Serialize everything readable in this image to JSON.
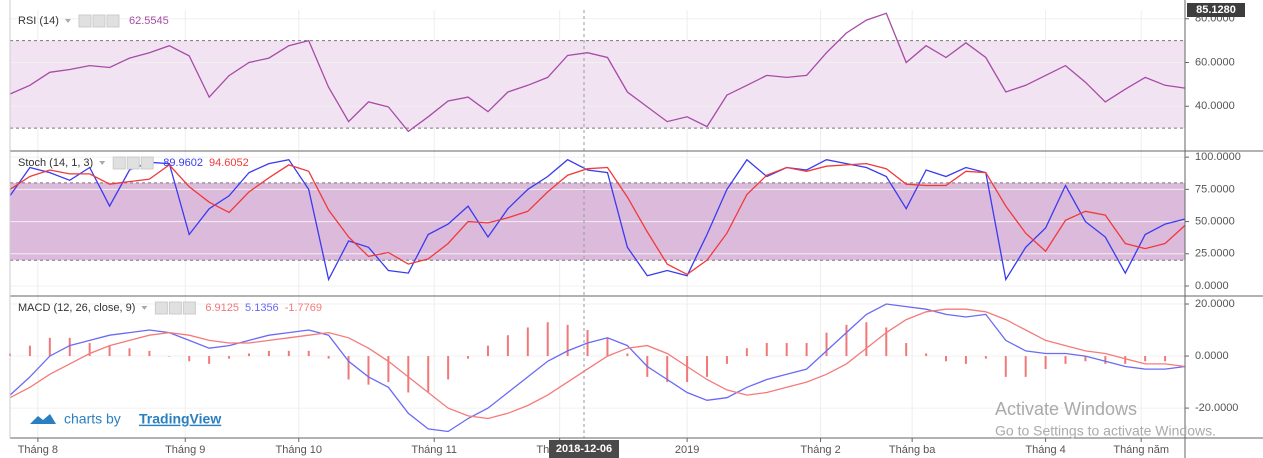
{
  "chart_data": [
    {
      "type": "line",
      "title": "RSI (14)",
      "ylim": [
        20,
        84
      ],
      "yticks": [
        {
          "value": 40,
          "label": "40.0000"
        },
        {
          "value": 60,
          "label": "60.0000"
        },
        {
          "value": 80,
          "label": "80.0000"
        }
      ],
      "bands": [
        30,
        70
      ],
      "band_color": "#f1e3f2",
      "price_label": "85.1280",
      "series": [
        {
          "color": "#a64ca6",
          "last": 62.5545,
          "values": [
            45.6,
            49.6,
            55.5,
            56.8,
            58.6,
            57.7,
            62,
            64.5,
            67.7,
            63,
            44.2,
            54,
            60,
            62,
            67.7,
            70,
            48.7,
            33,
            42,
            39.7,
            28.5,
            35.2,
            42.4,
            44.2,
            37.5,
            46.5,
            49.6,
            53.2,
            63.2,
            64.5,
            62.3,
            46.5,
            39.7,
            33,
            35.2,
            30.7,
            45.1,
            49.6,
            54.1,
            53.2,
            54.1,
            64.5,
            73.5,
            79.4,
            82.5,
            60,
            67.7,
            62.3,
            69,
            62.3,
            46.5,
            49.6,
            54.1,
            58.6,
            51,
            42,
            47.8,
            53.2,
            49.6,
            48.3
          ]
        }
      ]
    },
    {
      "type": "line",
      "title": "Stoch (14, 1, 3)",
      "ylim": [
        -7,
        104
      ],
      "yticks": [
        {
          "value": 0,
          "label": "0.0000"
        },
        {
          "value": 25,
          "label": "25.0000"
        },
        {
          "value": 50,
          "label": "50.0000"
        },
        {
          "value": 75,
          "label": "75.0000"
        },
        {
          "value": 100,
          "label": "100.0000"
        }
      ],
      "bands": [
        20,
        80
      ],
      "band_color": "#dcbadc",
      "series": [
        {
          "color": "#3a3af0",
          "last": 89.9602,
          "values": [
            70,
            92,
            88,
            82,
            92,
            62,
            90,
            96,
            95,
            40,
            60,
            70,
            88,
            95,
            98,
            75,
            5,
            35,
            30,
            12,
            10,
            40,
            48,
            62,
            38,
            60,
            75,
            85,
            98,
            90,
            88,
            30,
            8,
            12,
            8,
            40,
            75,
            98,
            85,
            92,
            90,
            98,
            95,
            92,
            85,
            60,
            90,
            85,
            92,
            88,
            5,
            30,
            45,
            78,
            50,
            38,
            10,
            40,
            48,
            52
          ]
        },
        {
          "color": "#f03a3a",
          "last": 94.6052,
          "values": [
            75,
            85,
            90,
            87,
            87,
            79,
            81,
            83,
            94,
            77,
            65,
            57,
            73,
            84,
            94,
            89,
            59,
            38,
            23,
            26,
            17,
            21,
            33,
            50,
            49,
            53,
            58,
            73,
            86,
            91,
            92,
            69,
            42,
            17,
            9,
            20,
            41,
            71,
            86,
            92,
            89,
            93,
            94,
            95,
            91,
            79,
            78,
            78,
            89,
            88,
            62,
            41,
            27,
            51,
            58,
            55,
            33,
            29,
            33,
            47
          ]
        }
      ]
    },
    {
      "type": "line",
      "title": "MACD (12, 26, close, 9)",
      "ylim": [
        -31.5,
        22.7
      ],
      "yticks": [
        {
          "value": -20,
          "label": "-20.0000"
        },
        {
          "value": 0,
          "label": "0.0000"
        },
        {
          "value": 20,
          "label": "20.0000"
        }
      ],
      "xlim": [
        0,
        59
      ],
      "xticks": [
        {
          "value": 1.4,
          "label": "Tháng 8"
        },
        {
          "value": 8.8,
          "label": "Tháng 9"
        },
        {
          "value": 14.5,
          "label": "Tháng 10"
        },
        {
          "value": 21.3,
          "label": "Tháng 11"
        },
        {
          "value": 27.6,
          "label": "Tháng 12"
        },
        {
          "value": 34,
          "label": "2019"
        },
        {
          "value": 40.7,
          "label": "Tháng 2"
        },
        {
          "value": 45.3,
          "label": "Tháng ba"
        },
        {
          "value": 52,
          "label": "Tháng 4"
        },
        {
          "value": 56.8,
          "label": "Tháng năm"
        }
      ],
      "series": [
        {
          "type": "bar",
          "color": "#f07878",
          "last": 6.9125,
          "values": [
            1,
            4,
            7,
            7,
            5,
            4,
            3,
            2,
            0,
            -2,
            -3,
            -1,
            1,
            2,
            2,
            2,
            -1,
            -9,
            -11,
            -10,
            -14,
            -14,
            -9,
            -1,
            4,
            8,
            11,
            13,
            12,
            10,
            7,
            1,
            -8,
            -10,
            -10,
            -8,
            -3,
            3,
            5,
            5,
            5,
            9,
            12,
            13,
            11,
            5,
            1,
            -2,
            -3,
            -1,
            -8,
            -8,
            -5,
            -3,
            -2,
            -3,
            -3,
            -2,
            -2,
            0
          ]
        },
        {
          "type": "line",
          "color": "#6a6af5",
          "last": 5.1356,
          "values": [
            -15,
            -8,
            0,
            4,
            6,
            8,
            9,
            10,
            9,
            6,
            3,
            4,
            6,
            8,
            9,
            10,
            8,
            -2,
            -8,
            -12,
            -22,
            -28,
            -29,
            -24,
            -20,
            -14,
            -8,
            -2,
            2,
            5,
            7,
            4,
            -4,
            -9,
            -14,
            -17,
            -16,
            -12,
            -9,
            -7,
            -5,
            2,
            9,
            16,
            20,
            19,
            18,
            16,
            15,
            16,
            6,
            2,
            1,
            1,
            0,
            -2,
            -4,
            -5,
            -5,
            -4
          ]
        },
        {
          "type": "line",
          "color": "#f57a7a",
          "last": -1.7769,
          "values": [
            -16,
            -12,
            -7,
            -3,
            1,
            4,
            6,
            8,
            9,
            8,
            6,
            5,
            5,
            6,
            7,
            8,
            9,
            7,
            3,
            -2,
            -8,
            -14,
            -20,
            -23,
            -24,
            -22,
            -19,
            -15,
            -10,
            -5,
            0,
            3,
            4,
            1,
            -4,
            -9,
            -13,
            -15,
            -14,
            -12,
            -10,
            -7,
            -3,
            3,
            9,
            14,
            17,
            18,
            18,
            17,
            14,
            10,
            6,
            4,
            2,
            1,
            -1,
            -3,
            -3,
            -4
          ]
        }
      ]
    }
  ],
  "crosshair_label": "2018-12-06",
  "watermark": {
    "prefix": "charts by",
    "brand": "TradingView"
  },
  "activation": {
    "title": "Activate Windows",
    "text": "Go to Settings to activate Windows."
  }
}
